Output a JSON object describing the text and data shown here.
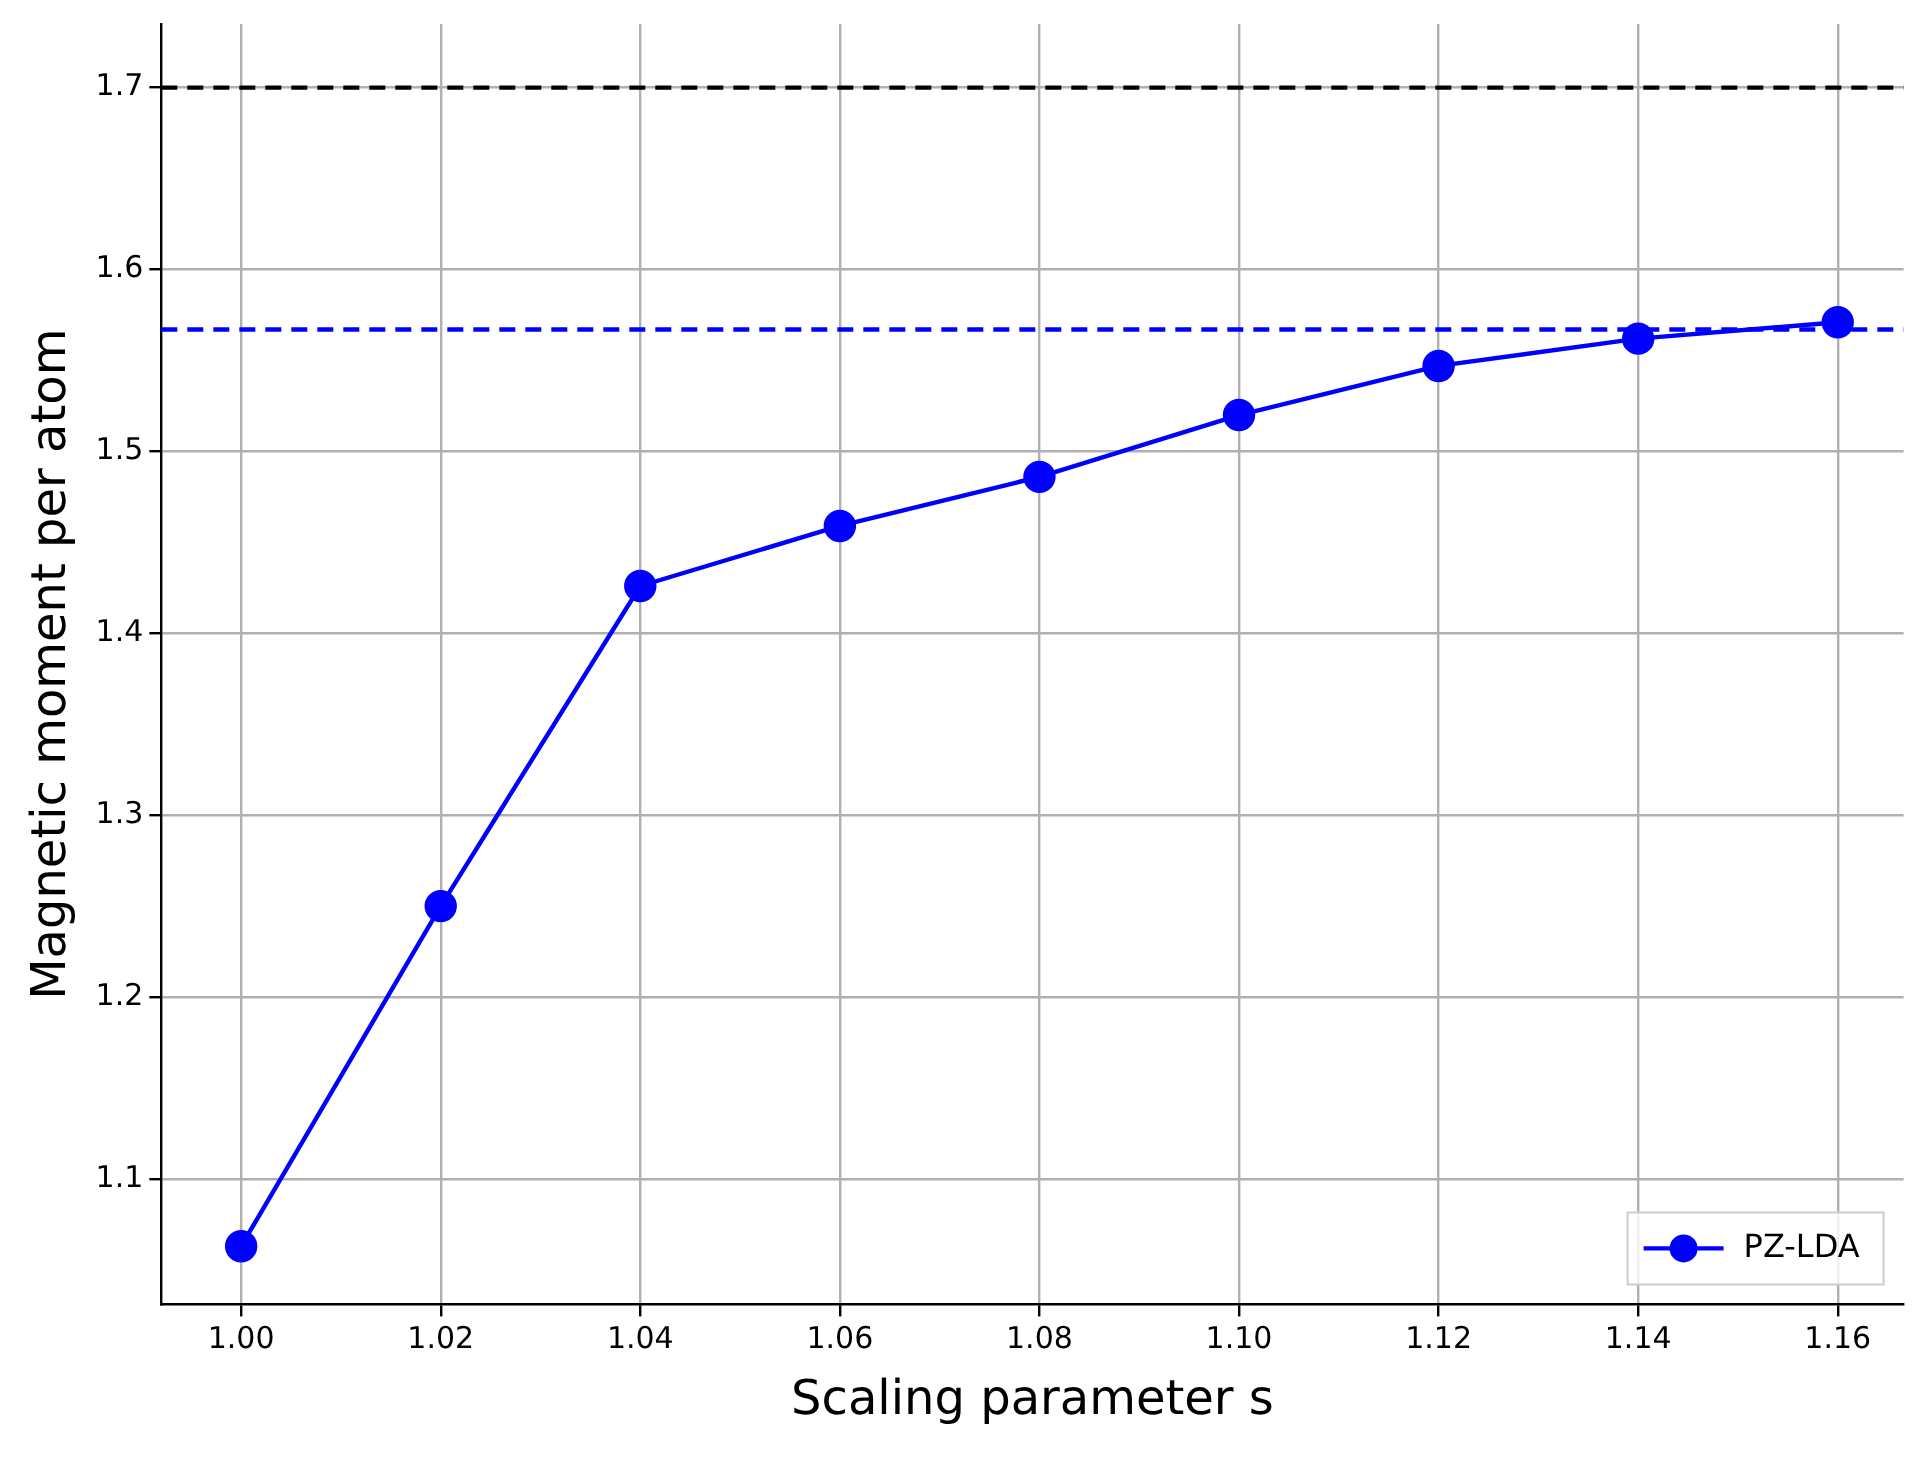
{
  "chart_data": {
    "type": "line",
    "xlabel": "Scaling parameter s",
    "ylabel": "Magnetic moment per atom",
    "x": [
      1.0,
      1.02,
      1.04,
      1.06,
      1.08,
      1.1,
      1.12,
      1.14,
      1.16
    ],
    "series": [
      {
        "name": "PZ-LDA",
        "color": "#0000ff",
        "values": [
          1.063,
          1.25,
          1.426,
          1.459,
          1.486,
          1.52,
          1.547,
          1.562,
          1.571
        ]
      }
    ],
    "xlim": [
      0.992,
      1.1666
    ],
    "ylim": [
      1.031,
      1.735
    ],
    "xticks": [
      {
        "value": 1.0,
        "label": "1.00"
      },
      {
        "value": 1.02,
        "label": "1.02"
      },
      {
        "value": 1.04,
        "label": "1.04"
      },
      {
        "value": 1.06,
        "label": "1.06"
      },
      {
        "value": 1.08,
        "label": "1.08"
      },
      {
        "value": 1.1,
        "label": "1.10"
      },
      {
        "value": 1.12,
        "label": "1.12"
      },
      {
        "value": 1.14,
        "label": "1.14"
      },
      {
        "value": 1.16,
        "label": "1.16"
      }
    ],
    "yticks": [
      1.1,
      1.2,
      1.3,
      1.4,
      1.5,
      1.6,
      1.7
    ],
    "ref_lines": [
      {
        "axis": "y",
        "value": 1.7,
        "color": "#000000",
        "line_style": "dashed"
      },
      {
        "axis": "y",
        "value": 1.567,
        "color": "#0000ff",
        "line_style": "dashed"
      }
    ],
    "grid": true,
    "legend": "bottom right",
    "marker": "circle",
    "line_style": "solid"
  }
}
